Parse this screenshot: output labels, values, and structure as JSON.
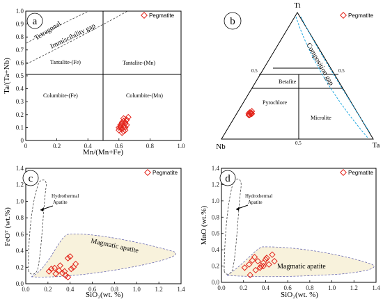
{
  "legend_label": "Pegmatite",
  "colors": {
    "marker": "#e3241b",
    "magmatic_fill": "#f8f2dc",
    "gap": "#1ea7e0"
  },
  "chart_data": [
    {
      "panel": "a",
      "type": "scatter",
      "xlabel": "Mn/(Mn+Fe)",
      "ylabel": "Ta/(Ta+Nb)",
      "xlim": [
        0,
        1
      ],
      "ylim": [
        0,
        1
      ],
      "xticks": [
        "0",
        "0.2",
        "0.4",
        "0.6",
        "0.8",
        "1.0"
      ],
      "yticks": [
        "0",
        "0.1",
        "0.2",
        "0.3",
        "0.4",
        "0.5",
        "0.6",
        "0.7",
        "0.8",
        "0.9",
        "1.0"
      ],
      "fields": [
        "Tetragonal",
        "Immiscibility gap",
        "Tantalite-(Fe)",
        "Tantalite-(Mn)",
        "Columbite-(Fe)",
        "Columbite-(Mn)"
      ],
      "series": [
        {
          "name": "Pegmatite",
          "x": [
            0.6,
            0.61,
            0.62,
            0.63,
            0.64,
            0.65,
            0.6,
            0.62,
            0.63,
            0.64,
            0.61,
            0.63,
            0.66,
            0.62,
            0.64,
            0.65,
            0.63,
            0.61,
            0.64,
            0.62
          ],
          "y": [
            0.1,
            0.12,
            0.14,
            0.11,
            0.13,
            0.16,
            0.08,
            0.09,
            0.15,
            0.1,
            0.11,
            0.07,
            0.18,
            0.13,
            0.08,
            0.12,
            0.17,
            0.1,
            0.14,
            0.06
          ]
        }
      ]
    },
    {
      "panel": "b",
      "type": "scatter",
      "vertices": [
        "Ti",
        "Nb",
        "Ta"
      ],
      "edge_ticks": [
        "0.5",
        "0.5",
        "0.5"
      ],
      "fields": [
        "Betafite",
        "Pyrochlore",
        "Microlite",
        "Composition gap"
      ],
      "series": [
        {
          "name": "Pegmatite",
          "Ta": [
            0.08,
            0.09,
            0.085,
            0.095,
            0.09,
            0.1,
            0.08,
            0.09
          ],
          "Ti": [
            0.2,
            0.21,
            0.19,
            0.2,
            0.22,
            0.2,
            0.21,
            0.19
          ]
        }
      ]
    },
    {
      "panel": "c",
      "type": "scatter",
      "xlabel": "SiO₂(wt. %)",
      "ylabel": "FeOᵀ (wt.%)",
      "xlim": [
        0,
        1.4
      ],
      "ylim": [
        0,
        1.4
      ],
      "xticks": [
        "0.0",
        "0.2",
        "0.4",
        "0.6",
        "0.8",
        "1.0",
        "1.2",
        "1.4"
      ],
      "yticks": [
        "0.0",
        "0.2",
        "0.4",
        "0.6",
        "0.8",
        "1.0",
        "1.2",
        "1.4"
      ],
      "annotations": [
        "Hydrothermal Apatite",
        "Magmatic apatite"
      ],
      "series": [
        {
          "name": "Pegmatite",
          "x": [
            0.21,
            0.23,
            0.27,
            0.3,
            0.33,
            0.36,
            0.38,
            0.4,
            0.41,
            0.43,
            0.35,
            0.45,
            0.38,
            0.31,
            0.26
          ],
          "y": [
            0.15,
            0.18,
            0.12,
            0.16,
            0.13,
            0.1,
            0.31,
            0.33,
            0.18,
            0.2,
            0.15,
            0.24,
            0.08,
            0.22,
            0.19
          ]
        }
      ]
    },
    {
      "panel": "d",
      "type": "scatter",
      "xlabel": "SiO₂(wt. %)",
      "ylabel": "MnO (wt.%)",
      "xlim": [
        0,
        1.4
      ],
      "ylim": [
        0,
        1.4
      ],
      "xticks": [
        "0.0",
        "0.2",
        "0.4",
        "0.6",
        "0.8",
        "1.0",
        "1.2",
        "1.4"
      ],
      "yticks": [
        "0.0",
        "0.2",
        "0.4",
        "0.6",
        "0.8",
        "1.0",
        "1.2",
        "1.4"
      ],
      "annotations": [
        "Hydrothermal Apatite",
        "Magmatic apatite"
      ],
      "series": [
        {
          "name": "Pegmatite",
          "x": [
            0.21,
            0.25,
            0.28,
            0.3,
            0.33,
            0.36,
            0.38,
            0.4,
            0.41,
            0.43,
            0.46,
            0.48,
            0.31,
            0.35,
            0.38,
            0.26
          ],
          "y": [
            0.18,
            0.22,
            0.27,
            0.31,
            0.26,
            0.2,
            0.24,
            0.28,
            0.3,
            0.22,
            0.34,
            0.26,
            0.15,
            0.18,
            0.2,
            0.09
          ]
        }
      ]
    }
  ]
}
